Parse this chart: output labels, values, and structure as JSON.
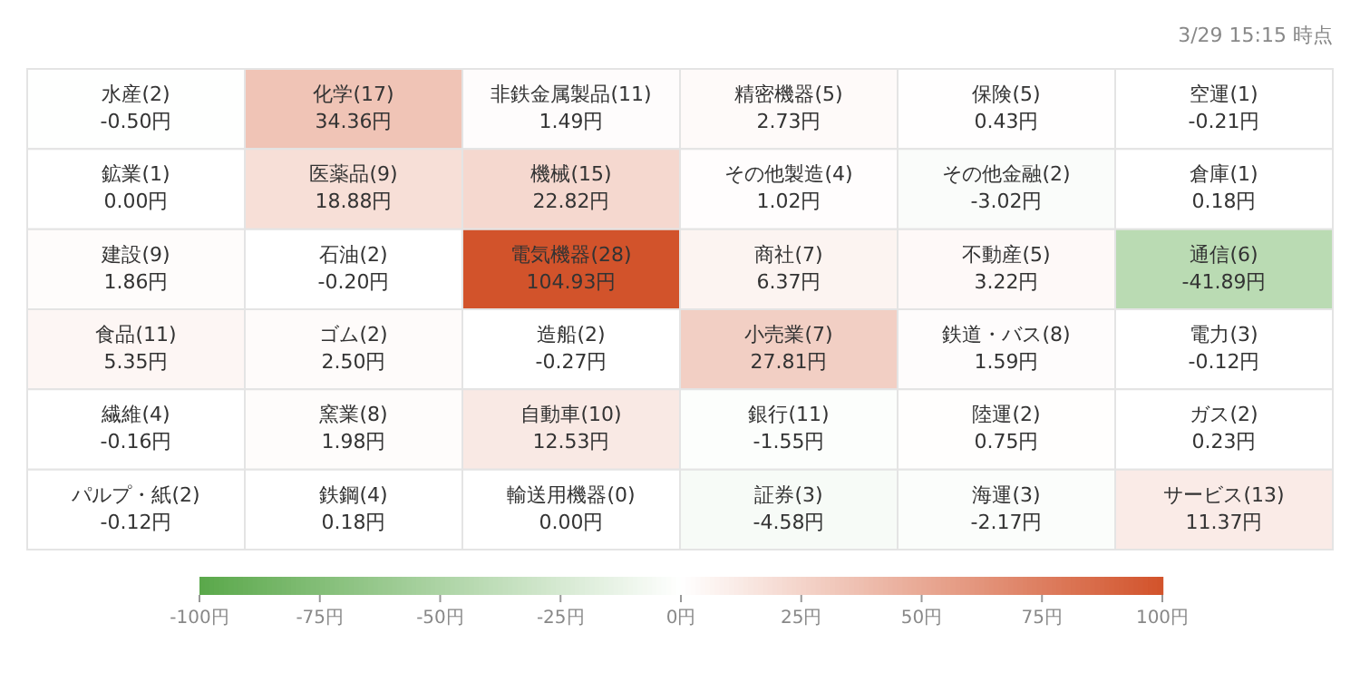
{
  "chart_data": {
    "type": "heatmap",
    "annotations": [
      "3/29 15:15 時点"
    ],
    "categories": [
      null,
      null,
      null,
      null,
      null,
      null
    ],
    "y_categories": [
      null,
      null,
      null,
      null,
      null,
      null
    ],
    "cells": [
      [
        -0.5,
        34.36,
        1.49,
        2.73,
        0.43,
        -0.21
      ],
      [
        0.0,
        18.88,
        22.82,
        1.02,
        -3.02,
        0.18
      ],
      [
        1.86,
        -0.2,
        104.93,
        6.37,
        3.22,
        -41.89
      ],
      [
        5.35,
        2.5,
        -0.27,
        27.81,
        1.59,
        -0.12
      ],
      [
        -0.16,
        1.98,
        12.53,
        -1.55,
        0.75,
        0.23
      ],
      [
        -0.12,
        0.18,
        0.0,
        -4.58,
        -2.17,
        11.37
      ]
    ],
    "cell_labels": [
      [
        "水産(2)\n-0.50円",
        "化学(17)\n34.36円",
        "非鉄金属製品(11)\n1.49円",
        "精密機器(5)\n2.73円",
        "保険(5)\n0.43円",
        "空運(1)\n-0.21円"
      ],
      [
        "鉱業(1)\n0.00円",
        "医薬品(9)\n18.88円",
        "機械(15)\n22.82円",
        "その他製造(4)\n1.02円",
        "その他金融(2)\n-3.02円",
        "倉庫(1)\n0.18円"
      ],
      [
        "建設(9)\n1.86円",
        "石油(2)\n-0.20円",
        "電気機器(28)\n104.93円",
        "商社(7)\n6.37円",
        "不動産(5)\n3.22円",
        "通信(6)\n-41.89円"
      ],
      [
        "食品(11)\n5.35円",
        "ゴム(2)\n2.50円",
        "造船(2)\n-0.27円",
        "小売業(7)\n27.81円",
        "鉄道・バス(8)\n1.59円",
        "電力(3)\n-0.12円"
      ],
      [
        "繊維(4)\n-0.16円",
        "窯業(8)\n1.98円",
        "自動車(10)\n12.53円",
        "銀行(11)\n-1.55円",
        "陸運(2)\n0.75円",
        "ガス(2)\n0.23円"
      ],
      [
        "パルプ・紙(2)\n-0.12円",
        "鉄鋼(4)\n0.18円",
        "輸送用機器(0)\n0.00円",
        "証券(3)\n-4.58円",
        "海運(3)\n-2.17円",
        "サービス(13)\n11.37円"
      ]
    ],
    "clim": [
      -100,
      100
    ],
    "cticks": [
      {
        "value": -100,
        "label": "-100円"
      },
      {
        "value": -75,
        "label": "-75円"
      },
      {
        "value": -50,
        "label": "-50円"
      },
      {
        "value": -25,
        "label": "-25円"
      },
      {
        "value": 0,
        "label": "0円"
      },
      {
        "value": 25,
        "label": "25円"
      },
      {
        "value": 50,
        "label": "50円"
      },
      {
        "value": 75,
        "label": "75円"
      },
      {
        "value": 100,
        "label": "100円"
      }
    ]
  }
}
